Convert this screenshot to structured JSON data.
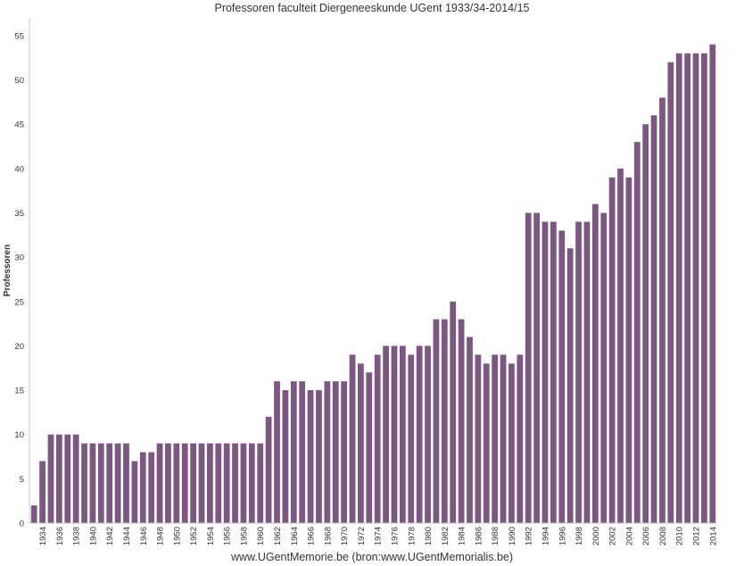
{
  "header": {
    "title": "Professoren faculteit Diergeneeskunde UGent 1933/34-2014/15"
  },
  "footer": {
    "text": "www.UGentMemorie.be (bron:www.UGentMemorialis.be)"
  },
  "colors": {
    "bar": "#7b5782",
    "axis": "#c8c8c8"
  },
  "chart_data": {
    "type": "bar",
    "title": "Professoren faculteit Diergeneeskunde UGent 1933/34-2014/15",
    "xlabel": "",
    "ylabel": "Professoren",
    "ylim": [
      0,
      57
    ],
    "yticks": [
      0,
      5,
      10,
      15,
      20,
      25,
      30,
      35,
      40,
      45,
      50,
      55
    ],
    "grid": false,
    "categories": [
      1933,
      1934,
      1935,
      1936,
      1937,
      1938,
      1939,
      1940,
      1941,
      1942,
      1943,
      1944,
      1945,
      1946,
      1947,
      1948,
      1949,
      1950,
      1951,
      1952,
      1953,
      1954,
      1955,
      1956,
      1957,
      1958,
      1959,
      1960,
      1961,
      1962,
      1963,
      1964,
      1965,
      1966,
      1967,
      1968,
      1969,
      1970,
      1971,
      1972,
      1973,
      1974,
      1975,
      1976,
      1977,
      1978,
      1979,
      1980,
      1981,
      1982,
      1983,
      1984,
      1985,
      1986,
      1987,
      1988,
      1989,
      1990,
      1991,
      1992,
      1993,
      1994,
      1995,
      1996,
      1997,
      1998,
      1999,
      2000,
      2001,
      2002,
      2003,
      2004,
      2005,
      2006,
      2007,
      2008,
      2009,
      2010,
      2011,
      2012,
      2013,
      2014
    ],
    "tick_labels": [
      "",
      "1934",
      "",
      "1936",
      "",
      "1938",
      "",
      "1940",
      "",
      "1942",
      "",
      "1944",
      "",
      "1946",
      "",
      "1948",
      "",
      "1950",
      "",
      "1952",
      "",
      "1954",
      "",
      "1956",
      "",
      "1958",
      "",
      "1960",
      "",
      "1962",
      "",
      "1964",
      "",
      "1966",
      "",
      "1968",
      "",
      "1970",
      "",
      "1972",
      "",
      "1974",
      "",
      "1976",
      "",
      "1978",
      "",
      "1980",
      "",
      "1982",
      "",
      "1984",
      "",
      "1986",
      "",
      "1988",
      "",
      "1990",
      "",
      "1992",
      "",
      "1994",
      "",
      "1996",
      "",
      "1998",
      "",
      "2000",
      "",
      "2002",
      "",
      "2004",
      "",
      "2006",
      "",
      "2008",
      "",
      "2010",
      "",
      "2012",
      "",
      "2014"
    ],
    "values": [
      2,
      7,
      10,
      10,
      10,
      10,
      9,
      9,
      9,
      9,
      9,
      9,
      7,
      8,
      8,
      9,
      9,
      9,
      9,
      9,
      9,
      9,
      9,
      9,
      9,
      9,
      9,
      9,
      12,
      16,
      15,
      16,
      16,
      15,
      15,
      16,
      16,
      16,
      19,
      18,
      17,
      19,
      20,
      20,
      20,
      19,
      20,
      20,
      23,
      23,
      25,
      23,
      21,
      19,
      18,
      19,
      19,
      18,
      19,
      35,
      35,
      34,
      34,
      33,
      31,
      34,
      34,
      36,
      35,
      39,
      40,
      39,
      43,
      45,
      46,
      48,
      52,
      53,
      53,
      53,
      53,
      54
    ]
  }
}
